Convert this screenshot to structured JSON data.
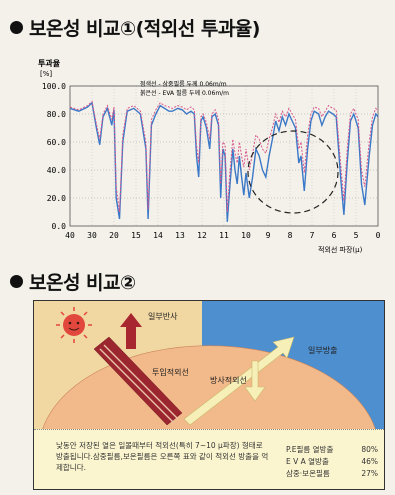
{
  "section1": {
    "title": "보온성 비교①(적외선 투과율)"
  },
  "section2": {
    "title": "보온성 비교②"
  },
  "chart_data": {
    "type": "line",
    "ylabel": "투과율",
    "yunit": "[%]",
    "xlabel": "적외선 파장(μ)",
    "ylim": [
      0,
      100
    ],
    "yticks": [
      "100.0",
      "80.0",
      "60.0",
      "40.0",
      "20.0",
      "0.0"
    ],
    "xticks": [
      "40",
      "30",
      "20",
      "15",
      "14",
      "13",
      "12",
      "11",
      "10",
      "9",
      "8",
      "7",
      "6",
      "5",
      "0"
    ],
    "legend": [
      "점색선 - 삼중필름 두께 0.06m/m",
      "붉은선 - EVA 필름 두께 0.06m/m"
    ],
    "series": [
      {
        "name": "삼중필름",
        "color": "#3b78c8",
        "values": [
          [
            0,
            84
          ],
          [
            0.4,
            82
          ],
          [
            0.8,
            85
          ],
          [
            1,
            88
          ],
          [
            1.2,
            70
          ],
          [
            1.35,
            58
          ],
          [
            1.5,
            78
          ],
          [
            1.7,
            84
          ],
          [
            1.9,
            72
          ],
          [
            2.0,
            83
          ],
          [
            2.1,
            20
          ],
          [
            2.25,
            5
          ],
          [
            2.4,
            60
          ],
          [
            2.6,
            82
          ],
          [
            2.9,
            84
          ],
          [
            3.2,
            80
          ],
          [
            3.45,
            55
          ],
          [
            3.55,
            5
          ],
          [
            3.7,
            72
          ],
          [
            3.9,
            80
          ],
          [
            4.1,
            86
          ],
          [
            4.3,
            84
          ],
          [
            4.5,
            82
          ],
          [
            4.65,
            82
          ],
          [
            4.9,
            84
          ],
          [
            5.1,
            83
          ],
          [
            5.3,
            80
          ],
          [
            5.5,
            82
          ],
          [
            5.65,
            80
          ],
          [
            5.75,
            50
          ],
          [
            5.85,
            35
          ],
          [
            5.95,
            75
          ],
          [
            6.05,
            78
          ],
          [
            6.2,
            70
          ],
          [
            6.35,
            55
          ],
          [
            6.45,
            78
          ],
          [
            6.6,
            80
          ],
          [
            6.75,
            72
          ],
          [
            6.85,
            20
          ],
          [
            6.95,
            55
          ],
          [
            7.05,
            50
          ],
          [
            7.15,
            3
          ],
          [
            7.25,
            25
          ],
          [
            7.4,
            55
          ],
          [
            7.5,
            40
          ],
          [
            7.6,
            30
          ],
          [
            7.7,
            50
          ],
          [
            7.8,
            35
          ],
          [
            7.9,
            22
          ],
          [
            8.0,
            38
          ],
          [
            8.15,
            20
          ],
          [
            8.3,
            35
          ],
          [
            8.45,
            55
          ],
          [
            8.6,
            50
          ],
          [
            8.75,
            40
          ],
          [
            8.9,
            35
          ],
          [
            9.05,
            50
          ],
          [
            9.2,
            62
          ],
          [
            9.35,
            75
          ],
          [
            9.5,
            68
          ],
          [
            9.65,
            78
          ],
          [
            9.8,
            72
          ],
          [
            9.95,
            80
          ],
          [
            10.1,
            75
          ],
          [
            10.25,
            70
          ],
          [
            10.4,
            45
          ],
          [
            10.5,
            50
          ],
          [
            10.65,
            25
          ],
          [
            10.8,
            55
          ],
          [
            10.95,
            75
          ],
          [
            11.1,
            82
          ],
          [
            11.3,
            80
          ],
          [
            11.45,
            72
          ],
          [
            11.6,
            78
          ],
          [
            11.75,
            82
          ],
          [
            11.95,
            80
          ],
          [
            12.1,
            78
          ],
          [
            12.3,
            35
          ],
          [
            12.45,
            8
          ],
          [
            12.6,
            45
          ],
          [
            12.75,
            75
          ],
          [
            12.9,
            80
          ],
          [
            13.1,
            70
          ],
          [
            13.25,
            30
          ],
          [
            13.4,
            15
          ],
          [
            13.6,
            50
          ],
          [
            13.75,
            72
          ],
          [
            13.9,
            80
          ],
          [
            14,
            78
          ]
        ]
      },
      {
        "name": "EVA 필름",
        "color": "#d9568c",
        "values": [
          [
            0,
            85
          ],
          [
            0.4,
            83
          ],
          [
            0.8,
            86
          ],
          [
            1,
            89
          ],
          [
            1.2,
            73
          ],
          [
            1.35,
            62
          ],
          [
            1.5,
            80
          ],
          [
            1.7,
            86
          ],
          [
            1.9,
            76
          ],
          [
            2.0,
            85
          ],
          [
            2.1,
            28
          ],
          [
            2.25,
            10
          ],
          [
            2.4,
            65
          ],
          [
            2.6,
            84
          ],
          [
            2.9,
            86
          ],
          [
            3.2,
            82
          ],
          [
            3.45,
            60
          ],
          [
            3.55,
            12
          ],
          [
            3.7,
            76
          ],
          [
            3.9,
            83
          ],
          [
            4.1,
            88
          ],
          [
            4.3,
            86
          ],
          [
            4.5,
            85
          ],
          [
            4.65,
            84
          ],
          [
            4.9,
            86
          ],
          [
            5.1,
            85
          ],
          [
            5.3,
            83
          ],
          [
            5.5,
            85
          ],
          [
            5.65,
            83
          ],
          [
            5.75,
            58
          ],
          [
            5.85,
            45
          ],
          [
            5.95,
            78
          ],
          [
            6.05,
            80
          ],
          [
            6.2,
            74
          ],
          [
            6.35,
            62
          ],
          [
            6.45,
            80
          ],
          [
            6.6,
            83
          ],
          [
            6.75,
            76
          ],
          [
            6.85,
            30
          ],
          [
            6.95,
            60
          ],
          [
            7.05,
            58
          ],
          [
            7.15,
            10
          ],
          [
            7.25,
            35
          ],
          [
            7.4,
            62
          ],
          [
            7.5,
            52
          ],
          [
            7.6,
            45
          ],
          [
            7.7,
            60
          ],
          [
            7.8,
            50
          ],
          [
            7.9,
            42
          ],
          [
            8.0,
            55
          ],
          [
            8.15,
            40
          ],
          [
            8.3,
            52
          ],
          [
            8.45,
            65
          ],
          [
            8.6,
            62
          ],
          [
            8.75,
            55
          ],
          [
            8.9,
            52
          ],
          [
            9.05,
            62
          ],
          [
            9.2,
            70
          ],
          [
            9.35,
            80
          ],
          [
            9.5,
            74
          ],
          [
            9.65,
            82
          ],
          [
            9.8,
            78
          ],
          [
            9.95,
            84
          ],
          [
            10.1,
            80
          ],
          [
            10.25,
            76
          ],
          [
            10.4,
            55
          ],
          [
            10.5,
            60
          ],
          [
            10.65,
            38
          ],
          [
            10.8,
            65
          ],
          [
            10.95,
            80
          ],
          [
            11.1,
            85
          ],
          [
            11.3,
            84
          ],
          [
            11.45,
            78
          ],
          [
            11.6,
            82
          ],
          [
            11.75,
            86
          ],
          [
            11.95,
            84
          ],
          [
            12.1,
            83
          ],
          [
            12.3,
            45
          ],
          [
            12.45,
            18
          ],
          [
            12.6,
            55
          ],
          [
            12.75,
            80
          ],
          [
            12.9,
            84
          ],
          [
            13.1,
            76
          ],
          [
            13.25,
            40
          ],
          [
            13.4,
            28
          ],
          [
            13.6,
            60
          ],
          [
            13.75,
            78
          ],
          [
            13.9,
            84
          ],
          [
            14,
            82
          ]
        ]
      }
    ]
  },
  "diagram": {
    "labels": {
      "reflect": "일부반사",
      "transmit": "투입적외선",
      "radiate": "방사적외선",
      "emit": "일부방출"
    },
    "note": "낮동안 저장된 열은 일몰때부터 적외선(특히 7~10 μ파장) 형태로 방출됩니다.삼중필름,보온필름은 오른쪽 표와 같이 적외선 방출을 억제합니다.",
    "stats": [
      {
        "label": "P.E필름 열방출",
        "value": "80%"
      },
      {
        "label": "E V A 열방출",
        "value": "46%"
      },
      {
        "label": "삼중·보온필름",
        "value": "27%"
      }
    ]
  }
}
